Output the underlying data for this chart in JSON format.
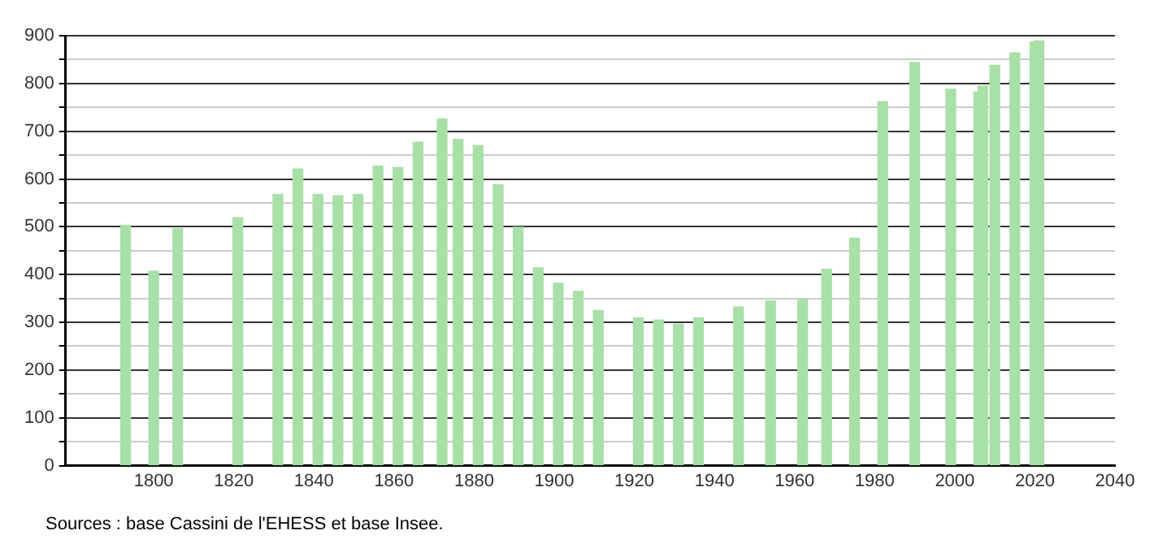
{
  "chart_data": {
    "type": "bar",
    "x": [
      1793,
      1800,
      1806,
      1821,
      1831,
      1836,
      1841,
      1846,
      1851,
      1856,
      1861,
      1866,
      1872,
      1876,
      1881,
      1886,
      1891,
      1896,
      1901,
      1906,
      1911,
      1921,
      1926,
      1931,
      1936,
      1946,
      1954,
      1962,
      1968,
      1975,
      1982,
      1990,
      1999,
      2006,
      2007,
      2010,
      2015,
      2020,
      2021
    ],
    "values": [
      503,
      407,
      496,
      519,
      568,
      621,
      568,
      565,
      568,
      627,
      624,
      677,
      726,
      683,
      670,
      588,
      499,
      414,
      382,
      365,
      325,
      309,
      305,
      296,
      309,
      332,
      345,
      347,
      411,
      476,
      762,
      844,
      788,
      782,
      795,
      838,
      864,
      887,
      889
    ],
    "color": "#a8e0a8",
    "xlim": [
      1778,
      2040
    ],
    "xticks": [
      1800,
      1820,
      1840,
      1860,
      1880,
      1900,
      1920,
      1940,
      1960,
      1980,
      2000,
      2020,
      2040
    ],
    "ylim": [
      0,
      900
    ],
    "yticks": [
      0,
      {
        "value": 50,
        "label": null
      },
      100,
      {
        "value": 150,
        "label": null
      },
      200,
      {
        "value": 250,
        "label": null
      },
      300,
      {
        "value": 350,
        "label": null
      },
      400,
      {
        "value": 450,
        "label": null
      },
      500,
      {
        "value": 550,
        "label": null
      },
      600,
      {
        "value": 650,
        "label": null
      },
      700,
      {
        "value": 750,
        "label": null
      },
      800,
      {
        "value": 850,
        "label": null
      },
      900
    ],
    "grid": "y",
    "annotations": [
      "Sources : base Cassini de l'EHESS et base Insee."
    ]
  }
}
